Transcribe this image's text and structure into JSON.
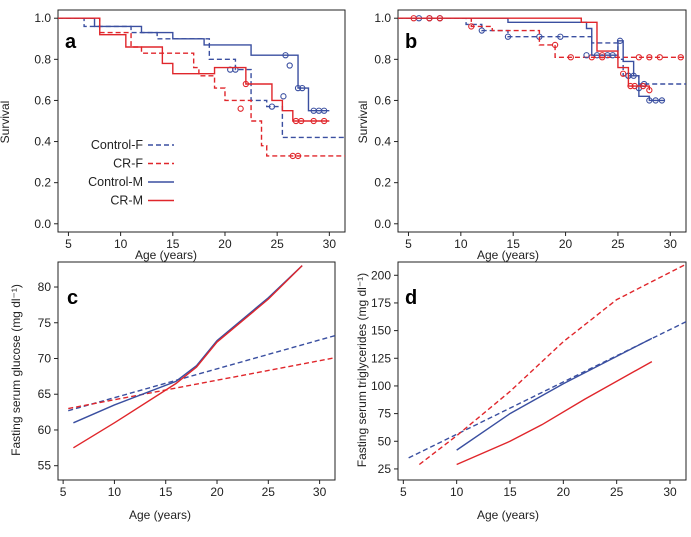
{
  "colors": {
    "blue": "#3a4fa0",
    "red": "#e0262b",
    "censor_blue": "#3a4fa0",
    "censor_red": "#e0262b"
  },
  "chart_data": [
    {
      "panel": "a",
      "type": "line",
      "xlabel": "Age (years)",
      "ylabel": "Survival",
      "xlim": [
        4,
        31.5
      ],
      "ylim": [
        -0.04,
        1.04
      ],
      "xticks": [
        5,
        10,
        15,
        20,
        25,
        30
      ],
      "yticks": [
        0.0,
        0.2,
        0.4,
        0.6,
        0.8,
        1.0
      ],
      "ytick_labels": [
        "0.0",
        "0.2",
        "0.4",
        "0.6",
        "0.8",
        "1.0"
      ],
      "legend": {
        "placement": "bottom-left",
        "entries": [
          {
            "label": "Control-F",
            "color": "blue",
            "dashed": true
          },
          {
            "label": "CR-F",
            "color": "red",
            "dashed": true
          },
          {
            "label": "Control-M",
            "color": "blue",
            "dashed": false
          },
          {
            "label": "CR-M",
            "color": "red",
            "dashed": false
          }
        ]
      },
      "series": [
        {
          "legend_key": "Control-F",
          "color": "blue",
          "dashed": true,
          "step": true,
          "points": [
            [
              4,
              1.0
            ],
            [
              6.5,
              0.96
            ],
            [
              11,
              0.93
            ],
            [
              13.5,
              0.9
            ],
            [
              18.5,
              0.8
            ],
            [
              21,
              0.75
            ],
            [
              22.5,
              0.6
            ],
            [
              24,
              0.57
            ],
            [
              25.5,
              0.42
            ],
            [
              31.5,
              0.42
            ]
          ],
          "censors": [
            [
              20.5,
              0.75
            ],
            [
              24.5,
              0.57
            ],
            [
              25.6,
              0.62
            ]
          ]
        },
        {
          "legend_key": "CR-F",
          "color": "red",
          "dashed": true,
          "step": true,
          "points": [
            [
              4,
              1.0
            ],
            [
              8,
              0.93
            ],
            [
              11,
              0.86
            ],
            [
              12,
              0.83
            ],
            [
              17,
              0.76
            ],
            [
              17.5,
              0.72
            ],
            [
              19,
              0.66
            ],
            [
              20,
              0.6
            ],
            [
              22.5,
              0.5
            ],
            [
              23.5,
              0.38
            ],
            [
              24,
              0.33
            ],
            [
              31.5,
              0.33
            ]
          ],
          "censors": [
            [
              21.5,
              0.56
            ],
            [
              26.5,
              0.33
            ],
            [
              27,
              0.33
            ]
          ]
        },
        {
          "legend_key": "Control-M",
          "color": "blue",
          "dashed": false,
          "step": true,
          "points": [
            [
              4,
              1.0
            ],
            [
              7.5,
              0.96
            ],
            [
              12,
              0.93
            ],
            [
              15,
              0.9
            ],
            [
              18,
              0.87
            ],
            [
              22.5,
              0.82
            ],
            [
              26,
              0.82
            ],
            [
              27,
              0.66
            ],
            [
              28,
              0.55
            ],
            [
              30,
              0.55
            ]
          ],
          "censors": [
            [
              21,
              0.75
            ],
            [
              25.8,
              0.82
            ],
            [
              26.2,
              0.77
            ],
            [
              27,
              0.66
            ],
            [
              27.4,
              0.66
            ],
            [
              28.5,
              0.55
            ],
            [
              29,
              0.55
            ],
            [
              29.5,
              0.55
            ]
          ]
        },
        {
          "legend_key": "CR-M",
          "color": "red",
          "dashed": false,
          "step": true,
          "points": [
            [
              4,
              1.0
            ],
            [
              8,
              0.92
            ],
            [
              10.5,
              0.86
            ],
            [
              14,
              0.78
            ],
            [
              15,
              0.73
            ],
            [
              19,
              0.76
            ],
            [
              22,
              0.68
            ],
            [
              24.5,
              0.6
            ],
            [
              25.5,
              0.55
            ],
            [
              26.5,
              0.5
            ],
            [
              30,
              0.5
            ]
          ],
          "censors": [
            [
              22,
              0.68
            ],
            [
              26.8,
              0.5
            ],
            [
              27.3,
              0.5
            ],
            [
              28.5,
              0.5
            ],
            [
              29.5,
              0.5
            ]
          ]
        }
      ]
    },
    {
      "panel": "b",
      "type": "line",
      "xlabel": "Age (years)",
      "ylabel": "Survival",
      "xlim": [
        4,
        31.5
      ],
      "ylim": [
        -0.04,
        1.04
      ],
      "xticks": [
        5,
        10,
        15,
        20,
        25,
        30
      ],
      "yticks": [
        0.0,
        0.2,
        0.4,
        0.6,
        0.8,
        1.0
      ],
      "ytick_labels": [
        "0.0",
        "0.2",
        "0.4",
        "0.6",
        "0.8",
        "1.0"
      ],
      "series": [
        {
          "legend_key": "Control-F",
          "color": "blue",
          "dashed": true,
          "step": true,
          "points": [
            [
              4,
              1.0
            ],
            [
              10.5,
              0.97
            ],
            [
              12,
              0.94
            ],
            [
              14.5,
              0.91
            ],
            [
              22.5,
              0.88
            ],
            [
              25,
              0.8
            ],
            [
              25.5,
              0.72
            ],
            [
              27,
              0.68
            ],
            [
              31.5,
              0.68
            ]
          ],
          "censors": [
            [
              6,
              1.0
            ],
            [
              7,
              1.0
            ],
            [
              8,
              1.0
            ],
            [
              12,
              0.94
            ],
            [
              14.5,
              0.91
            ],
            [
              17.5,
              0.91
            ],
            [
              19.5,
              0.91
            ],
            [
              23,
              0.82
            ],
            [
              24,
              0.82
            ],
            [
              26,
              0.72
            ],
            [
              26.5,
              0.72
            ],
            [
              27.5,
              0.68
            ]
          ]
        },
        {
          "legend_key": "CR-F",
          "color": "red",
          "dashed": true,
          "step": true,
          "points": [
            [
              4,
              1.0
            ],
            [
              11,
              0.96
            ],
            [
              13,
              0.94
            ],
            [
              17.5,
              0.87
            ],
            [
              19,
              0.81
            ],
            [
              31.5,
              0.81
            ]
          ],
          "censors": [
            [
              5.5,
              1.0
            ],
            [
              7,
              1.0
            ],
            [
              8,
              1.0
            ],
            [
              11,
              0.96
            ],
            [
              19,
              0.87
            ],
            [
              20.5,
              0.81
            ],
            [
              22.5,
              0.81
            ],
            [
              23.5,
              0.81
            ],
            [
              27,
              0.81
            ],
            [
              28,
              0.81
            ],
            [
              29,
              0.81
            ],
            [
              31,
              0.81
            ]
          ]
        },
        {
          "legend_key": "Control-M",
          "color": "blue",
          "dashed": false,
          "step": true,
          "points": [
            [
              4,
              1.0
            ],
            [
              14.5,
              0.98
            ],
            [
              22,
              0.95
            ],
            [
              22.5,
              0.82
            ],
            [
              25,
              0.89
            ],
            [
              25.5,
              0.79
            ],
            [
              26.5,
              0.72
            ],
            [
              27,
              0.62
            ],
            [
              28,
              0.6
            ],
            [
              29.5,
              0.6
            ]
          ],
          "censors": [
            [
              22,
              0.82
            ],
            [
              24.5,
              0.82
            ],
            [
              25.2,
              0.89
            ],
            [
              26,
              0.72
            ],
            [
              27,
              0.66
            ],
            [
              28,
              0.6
            ],
            [
              28.6,
              0.6
            ],
            [
              29.2,
              0.6
            ]
          ]
        },
        {
          "legend_key": "CR-M",
          "color": "red",
          "dashed": false,
          "step": true,
          "points": [
            [
              4,
              1.0
            ],
            [
              21.5,
              0.98
            ],
            [
              23,
              0.84
            ],
            [
              25,
              0.76
            ],
            [
              26,
              0.67
            ],
            [
              27,
              0.67
            ],
            [
              28,
              0.65
            ]
          ],
          "censors": [
            [
              23.5,
              0.82
            ],
            [
              25.5,
              0.73
            ],
            [
              26.2,
              0.67
            ],
            [
              26.6,
              0.67
            ],
            [
              27.4,
              0.67
            ],
            [
              28,
              0.65
            ]
          ]
        }
      ]
    },
    {
      "panel": "c",
      "type": "line",
      "xlabel": "Age (years)",
      "ylabel": "Fasting serum glucose (mg dl⁻¹)",
      "xlim": [
        4.5,
        31.5
      ],
      "ylim": [
        53,
        83.5
      ],
      "xticks": [
        5,
        10,
        15,
        20,
        25,
        30
      ],
      "yticks": [
        55,
        60,
        65,
        70,
        75,
        80
      ],
      "series": [
        {
          "legend_key": "Control-F",
          "color": "blue",
          "dashed": true,
          "points": [
            [
              5.5,
              62.7
            ],
            [
              31.5,
              73.2
            ]
          ]
        },
        {
          "legend_key": "CR-F",
          "color": "red",
          "dashed": true,
          "points": [
            [
              5.5,
              63.0
            ],
            [
              31.5,
              70.1
            ]
          ]
        },
        {
          "legend_key": "Control-M",
          "color": "blue",
          "dashed": false,
          "points": [
            [
              6,
              61.0
            ],
            [
              10,
              63.5
            ],
            [
              16,
              66.8
            ],
            [
              18,
              69.0
            ],
            [
              20,
              72.5
            ],
            [
              25,
              78.5
            ],
            [
              28.3,
              83.0
            ]
          ]
        },
        {
          "legend_key": "CR-M",
          "color": "red",
          "dashed": false,
          "points": [
            [
              6,
              57.5
            ],
            [
              10,
              61.0
            ],
            [
              16,
              66.5
            ],
            [
              18,
              68.8
            ],
            [
              20,
              72.3
            ],
            [
              25,
              78.3
            ],
            [
              28.3,
              83.0
            ]
          ]
        }
      ]
    },
    {
      "panel": "d",
      "type": "line",
      "xlabel": "Age (years)",
      "ylabel": "Fasting serum triglycerides (mg dl⁻¹)",
      "xlim": [
        4.5,
        31.5
      ],
      "ylim": [
        15,
        212
      ],
      "xticks": [
        5,
        10,
        15,
        20,
        25,
        30
      ],
      "yticks": [
        25,
        50,
        75,
        100,
        125,
        150,
        175,
        200
      ],
      "series": [
        {
          "legend_key": "Control-F",
          "color": "blue",
          "dashed": true,
          "points": [
            [
              5.5,
              35.0
            ],
            [
              31.5,
              158.0
            ]
          ]
        },
        {
          "legend_key": "CR-F",
          "color": "red",
          "dashed": true,
          "points": [
            [
              6.5,
              29.0
            ],
            [
              10,
              55.0
            ],
            [
              15,
              95.0
            ],
            [
              20,
              140.0
            ],
            [
              25,
              178.0
            ],
            [
              31.5,
              210.0
            ]
          ]
        },
        {
          "legend_key": "Control-M",
          "color": "blue",
          "dashed": false,
          "points": [
            [
              10,
              42.0
            ],
            [
              15,
              75.0
            ],
            [
              20,
              102.0
            ],
            [
              28.3,
              143.0
            ]
          ]
        },
        {
          "legend_key": "CR-M",
          "color": "red",
          "dashed": false,
          "points": [
            [
              10,
              29.0
            ],
            [
              15,
              50.0
            ],
            [
              18,
              65.0
            ],
            [
              22,
              88.0
            ],
            [
              28.3,
              122.0
            ]
          ]
        }
      ]
    }
  ]
}
